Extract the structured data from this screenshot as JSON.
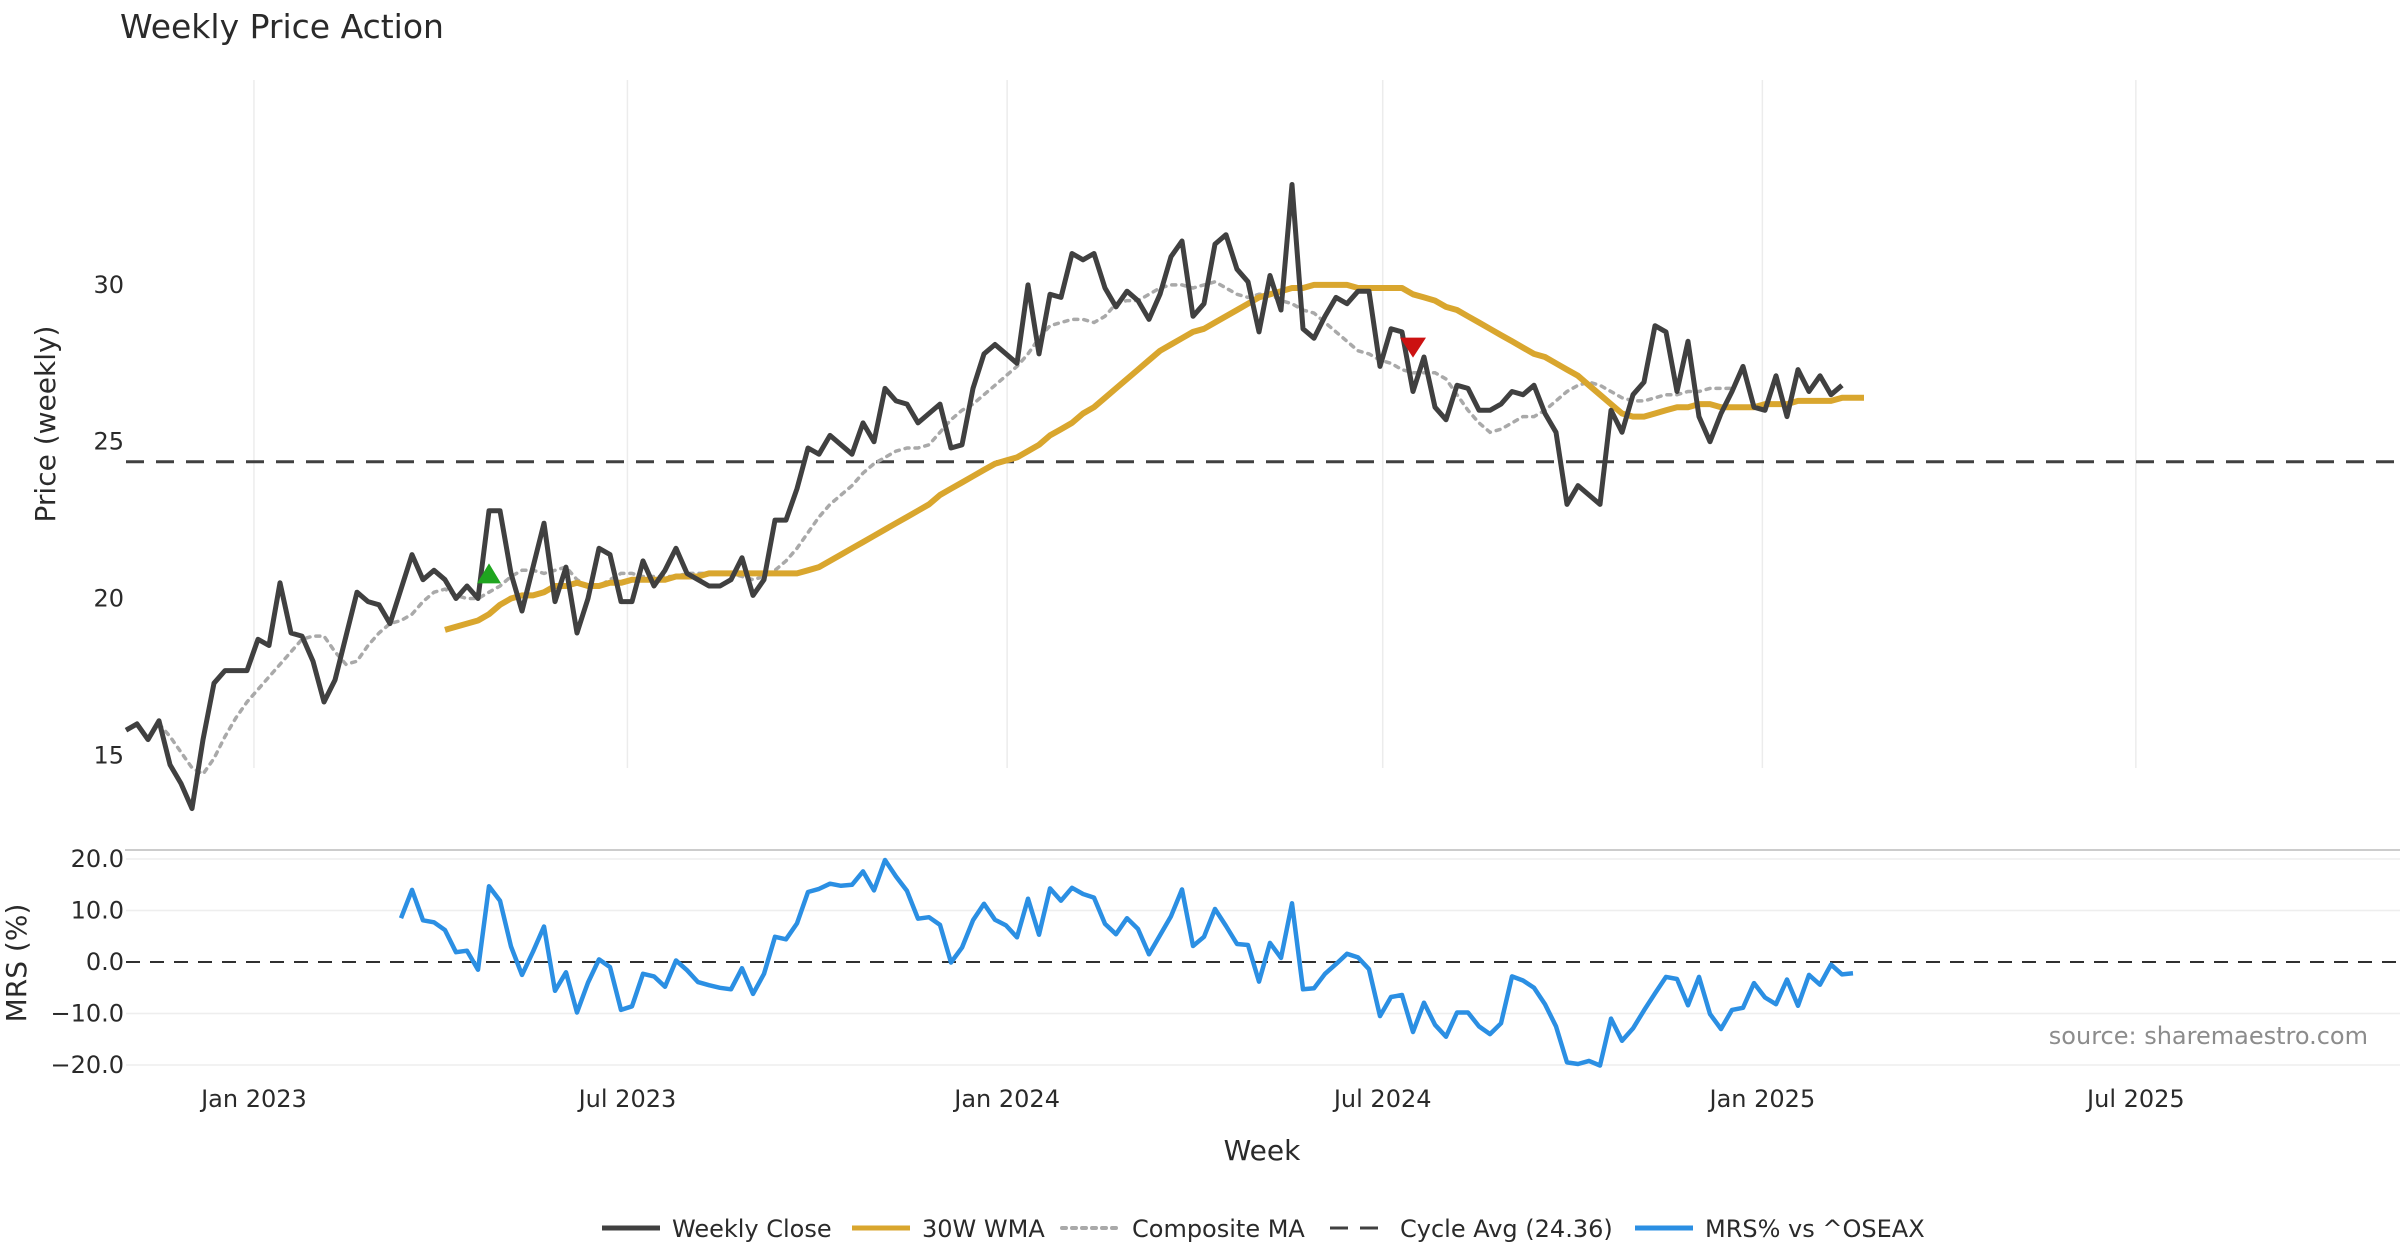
{
  "chart_data": [
    {
      "type": "line",
      "title": "Weekly Price Action",
      "xlabel": "",
      "ylabel": "Price (weekly)",
      "ylim": [
        12,
        34
      ],
      "yticks": [
        15,
        20,
        25,
        30
      ],
      "x_start": "2022-10-31",
      "x_end": "2025-11-10",
      "xticks": [
        {
          "date": "2023-01-01",
          "label": "Jan 2023"
        },
        {
          "date": "2023-07-01",
          "label": "Jul 2023"
        },
        {
          "date": "2024-01-01",
          "label": "Jan 2024"
        },
        {
          "date": "2024-07-01",
          "label": "Jul 2024"
        },
        {
          "date": "2025-01-01",
          "label": "Jan 2025"
        },
        {
          "date": "2025-07-01",
          "label": "Jul 2025"
        }
      ],
      "cycle_avg": 24.36,
      "series": [
        {
          "name": "Weekly Close",
          "color": "#404040",
          "start_week": 0,
          "values": [
            15.8,
            16.0,
            15.5,
            16.1,
            14.7,
            14.1,
            13.3,
            15.5,
            17.3,
            17.7,
            17.7,
            17.7,
            18.7,
            18.5,
            20.5,
            18.9,
            18.8,
            18.0,
            16.7,
            17.4,
            18.8,
            20.2,
            19.9,
            19.8,
            19.2,
            20.3,
            21.4,
            20.6,
            20.9,
            20.6,
            20.0,
            20.4,
            20.0,
            22.8,
            22.8,
            20.8,
            19.6,
            21.0,
            22.4,
            19.9,
            21.0,
            18.9,
            20.0,
            21.6,
            21.4,
            19.9,
            19.9,
            21.2,
            20.4,
            20.9,
            21.6,
            20.8,
            20.6,
            20.4,
            20.4,
            20.6,
            21.3,
            20.1,
            20.6,
            22.5,
            22.5,
            23.5,
            24.8,
            24.6,
            25.2,
            24.9,
            24.6,
            25.6,
            25.0,
            26.7,
            26.3,
            26.2,
            25.6,
            25.9,
            26.2,
            24.8,
            24.9,
            26.7,
            27.8,
            28.1,
            27.8,
            27.5,
            30.0,
            27.8,
            29.7,
            29.6,
            31.0,
            30.8,
            31.0,
            29.9,
            29.3,
            29.8,
            29.5,
            28.9,
            29.7,
            30.9,
            31.4,
            29.0,
            29.4,
            31.3,
            31.6,
            30.5,
            30.1,
            28.5,
            30.3,
            29.2,
            33.2,
            28.6,
            28.3,
            29.0,
            29.6,
            29.4,
            29.8,
            29.8,
            27.4,
            28.6,
            28.5,
            26.6,
            27.7,
            26.1,
            25.7,
            26.8,
            26.7,
            26.0,
            26.0,
            26.2,
            26.6,
            26.5,
            26.8,
            25.9,
            25.3,
            23.0,
            23.6,
            23.3,
            23.0,
            26.0,
            25.3,
            26.5,
            26.9,
            28.7,
            28.5,
            26.6,
            28.2,
            25.8,
            25.0,
            25.9,
            26.6,
            27.4,
            26.1,
            26.0,
            27.1,
            25.8,
            27.3,
            26.6,
            27.1,
            26.5,
            26.8
          ]
        },
        {
          "name": "30W WMA",
          "color": "#d9a62e",
          "start_week": 29,
          "values": [
            19.0,
            19.1,
            19.2,
            19.3,
            19.5,
            19.8,
            20.0,
            20.1,
            20.1,
            20.2,
            20.4,
            20.4,
            20.5,
            20.4,
            20.4,
            20.5,
            20.5,
            20.6,
            20.6,
            20.6,
            20.6,
            20.7,
            20.7,
            20.7,
            20.8,
            20.8,
            20.8,
            20.8,
            20.8,
            20.8,
            20.8,
            20.8,
            20.8,
            20.9,
            21.0,
            21.2,
            21.4,
            21.6,
            21.8,
            22.0,
            22.2,
            22.4,
            22.6,
            22.8,
            23.0,
            23.3,
            23.5,
            23.7,
            23.9,
            24.1,
            24.3,
            24.4,
            24.5,
            24.7,
            24.9,
            25.2,
            25.4,
            25.6,
            25.9,
            26.1,
            26.4,
            26.7,
            27.0,
            27.3,
            27.6,
            27.9,
            28.1,
            28.3,
            28.5,
            28.6,
            28.8,
            29.0,
            29.2,
            29.4,
            29.6,
            29.7,
            29.8,
            29.9,
            29.9,
            30.0,
            30.0,
            30.0,
            30.0,
            29.9,
            29.9,
            29.9,
            29.9,
            29.9,
            29.7,
            29.6,
            29.5,
            29.3,
            29.2,
            29.0,
            28.8,
            28.6,
            28.4,
            28.2,
            28.0,
            27.8,
            27.7,
            27.5,
            27.3,
            27.1,
            26.8,
            26.5,
            26.2,
            25.9,
            25.8,
            25.8,
            25.9,
            26.0,
            26.1,
            26.1,
            26.2,
            26.2,
            26.1,
            26.1,
            26.1,
            26.1,
            26.2,
            26.2,
            26.2,
            26.3,
            26.3,
            26.3,
            26.3,
            26.4,
            26.4,
            26.4
          ]
        },
        {
          "name": "Composite MA",
          "color": "#a9a9a9",
          "start_week": 3,
          "values": [
            16.0,
            15.6,
            15.1,
            14.6,
            14.4,
            14.9,
            15.6,
            16.2,
            16.7,
            17.1,
            17.5,
            17.9,
            18.3,
            18.7,
            18.8,
            18.8,
            18.3,
            17.9,
            18.0,
            18.5,
            18.9,
            19.2,
            19.3,
            19.5,
            19.9,
            20.2,
            20.3,
            20.1,
            20.0,
            20.0,
            20.2,
            20.4,
            20.7,
            20.9,
            20.9,
            20.8,
            20.9,
            21.0,
            20.6,
            20.4,
            20.4,
            20.6,
            20.8,
            20.8,
            20.7,
            20.7,
            20.7,
            20.7,
            20.8,
            20.8,
            20.8,
            20.8,
            20.8,
            20.7,
            20.6,
            20.7,
            20.9,
            21.2,
            21.6,
            22.1,
            22.6,
            23.0,
            23.3,
            23.6,
            24.0,
            24.3,
            24.5,
            24.7,
            24.8,
            24.8,
            24.9,
            25.3,
            25.7,
            26.0,
            26.2,
            26.5,
            26.8,
            27.1,
            27.4,
            27.8,
            28.3,
            28.7,
            28.8,
            28.9,
            28.9,
            28.8,
            29.0,
            29.4,
            29.5,
            29.5,
            29.7,
            29.9,
            30.0,
            30.0,
            29.9,
            30.0,
            30.1,
            29.9,
            29.7,
            29.6,
            29.7,
            29.7,
            29.5,
            29.4,
            29.2,
            29.1,
            28.8,
            28.5,
            28.2,
            27.9,
            27.8,
            27.6,
            27.5,
            27.3,
            27.2,
            27.2,
            27.2,
            27.0,
            26.5,
            26.0,
            25.6,
            25.3,
            25.4,
            25.6,
            25.8,
            25.8,
            26.0,
            26.3,
            26.6,
            26.8,
            26.9,
            26.8,
            26.6,
            26.4,
            26.3,
            26.3,
            26.4,
            26.5,
            26.5,
            26.6,
            26.6,
            26.7,
            26.7,
            26.7
          ]
        }
      ],
      "markers": [
        {
          "type": "buy",
          "week": 33,
          "value": 20.8,
          "color": "#1fa51f"
        },
        {
          "type": "sell",
          "week": 117,
          "value": 28.0,
          "color": "#cc1111"
        }
      ]
    },
    {
      "type": "line",
      "xlabel": "Week",
      "ylabel": "MRS (%)",
      "ylim": [
        -21,
        21
      ],
      "yticks": [
        {
          "value": 20,
          "label": "20.0"
        },
        {
          "value": 10,
          "label": "10.0"
        },
        {
          "value": 0,
          "label": "0.0"
        },
        {
          "value": -10,
          "label": "−10.0"
        },
        {
          "value": -20,
          "label": "−20.0"
        }
      ],
      "series": [
        {
          "name": "MRS% vs ^OSEAX",
          "color": "#2b8fe3",
          "start_week": 25,
          "values": [
            8.5,
            14.0,
            8.1,
            7.7,
            6.2,
            1.9,
            2.2,
            -1.5,
            14.7,
            11.9,
            3.0,
            -2.5,
            2.0,
            6.9,
            -5.6,
            -2.0,
            -9.8,
            -4.0,
            0.5,
            -1.0,
            -9.3,
            -8.6,
            -2.3,
            -2.8,
            -4.8,
            0.3,
            -1.6,
            -3.9,
            -4.5,
            -5.0,
            -5.3,
            -1.2,
            -6.2,
            -2.3,
            4.9,
            4.4,
            7.5,
            13.6,
            14.2,
            15.2,
            14.8,
            15.0,
            17.6,
            13.9,
            19.8,
            16.6,
            13.8,
            8.4,
            8.7,
            7.2,
            -0.1,
            2.8,
            8.1,
            11.3,
            8.2,
            7.1,
            4.8,
            12.3,
            5.3,
            14.3,
            11.9,
            14.4,
            13.2,
            12.5,
            7.4,
            5.4,
            8.5,
            6.4,
            1.5,
            5.2,
            8.9,
            14.1,
            3.1,
            4.9,
            10.3,
            7.0,
            3.5,
            3.3,
            -3.8,
            3.7,
            0.8,
            11.4,
            -5.3,
            -5.1,
            -2.3,
            -0.4,
            1.6,
            0.9,
            -1.4,
            -10.5,
            -6.8,
            -6.4,
            -13.6,
            -7.9,
            -12.2,
            -14.5,
            -9.8,
            -9.8,
            -12.5,
            -14.0,
            -11.9,
            -2.8,
            -3.6,
            -5.0,
            -8.2,
            -12.5,
            -19.5,
            -19.8,
            -19.2,
            -20.1,
            -11.0,
            -15.3,
            -12.9,
            -9.4,
            -6.1,
            -2.9,
            -3.3,
            -8.4,
            -2.9,
            -10.1,
            -13.0,
            -9.3,
            -8.9,
            -4.1,
            -6.9,
            -8.2,
            -3.4,
            -8.5,
            -2.5,
            -4.4,
            -0.5,
            -2.4,
            -2.2
          ]
        }
      ]
    }
  ],
  "legend": {
    "items": [
      {
        "label": "Weekly Close",
        "color": "#404040",
        "style": "solid"
      },
      {
        "label": "30W WMA",
        "color": "#d9a62e",
        "style": "solid"
      },
      {
        "label": "Composite MA",
        "color": "#a9a9a9",
        "style": "dotted"
      },
      {
        "label": "Cycle Avg (24.36)",
        "color": "#404040",
        "style": "dashed"
      },
      {
        "label": "MRS% vs ^OSEAX",
        "color": "#2b8fe3",
        "style": "solid"
      }
    ]
  },
  "source": "source: sharemaestro.com"
}
